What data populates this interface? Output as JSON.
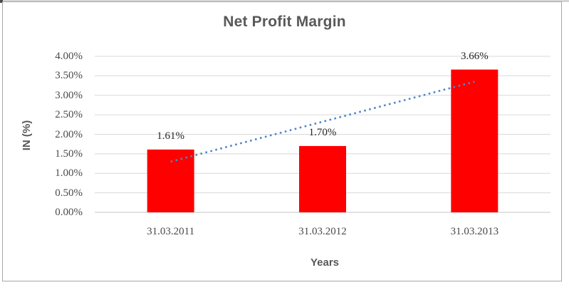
{
  "chart_data": {
    "type": "bar",
    "title": "Net Profit Margin",
    "xlabel": "Years",
    "ylabel": "IN (%)",
    "categories": [
      "31.03.2011",
      "31.03.2012",
      "31.03.2013"
    ],
    "values": [
      1.61,
      1.7,
      3.66
    ],
    "data_labels": [
      "1.61%",
      "1.70%",
      "3.66%"
    ],
    "ylim": [
      0,
      4
    ],
    "ytick_step": 0.5,
    "ytick_labels": [
      "0.00%",
      "0.50%",
      "1.00%",
      "1.50%",
      "2.00%",
      "2.50%",
      "3.00%",
      "3.50%",
      "4.00%"
    ],
    "grid": true,
    "legend": "none",
    "trendline": {
      "type": "linear",
      "style": "dotted"
    },
    "colors": {
      "bar": "#FF0000",
      "trendline": "#4E86C8",
      "gridline": "#D9D9D9",
      "axis_line": "#C6C6C6",
      "title_text": "#595959",
      "tick_text": "#4A4A4A",
      "data_label_text": "#262626",
      "frame_border": "#A6A6A6"
    }
  }
}
